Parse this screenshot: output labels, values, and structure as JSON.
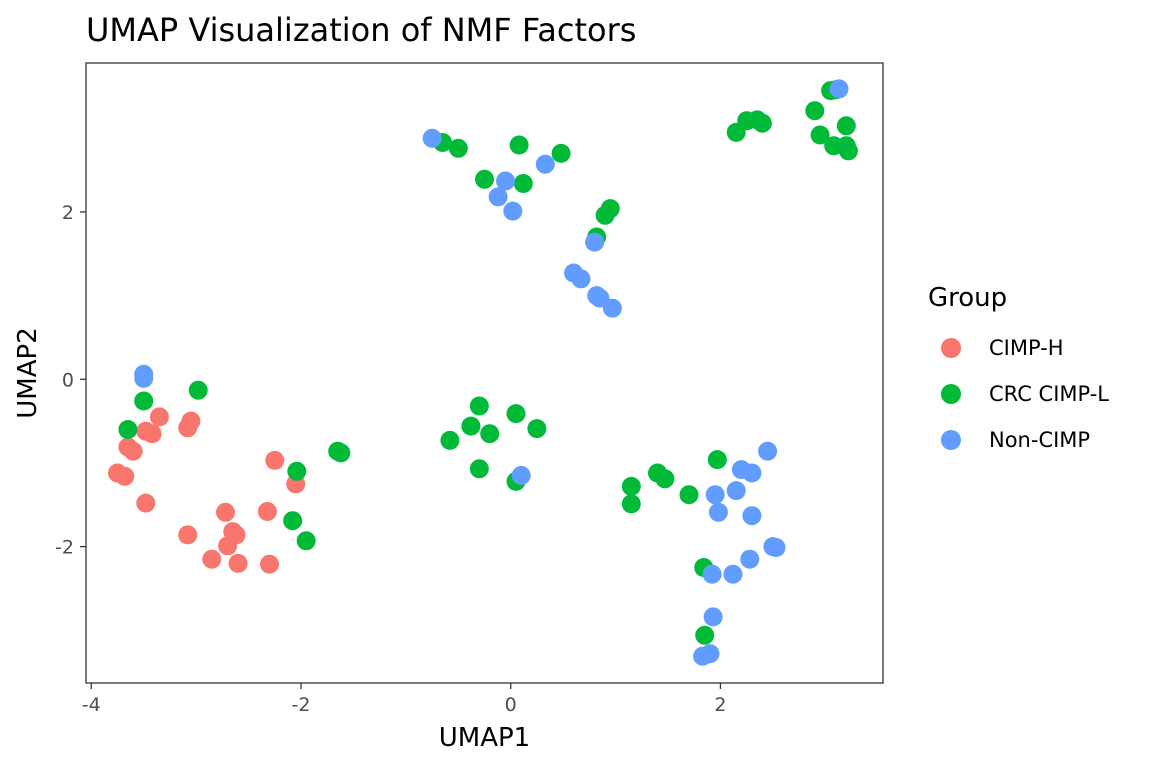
{
  "chart_data": {
    "type": "scatter",
    "title": "UMAP Visualization of NMF Factors",
    "xlabel": "UMAP1",
    "ylabel": "UMAP2",
    "xlim": [
      -4.05,
      3.55
    ],
    "ylim": [
      -3.63,
      3.78
    ],
    "x_ticks": [
      -4,
      -2,
      0,
      2
    ],
    "y_ticks": [
      -2,
      0,
      2
    ],
    "grid": false,
    "legend_position": "right",
    "legend_title": "Group",
    "series": [
      {
        "name": "CIMP-H",
        "color": "#F8766D",
        "points": [
          [
            -3.75,
            -1.12
          ],
          [
            -3.68,
            -1.16
          ],
          [
            -3.65,
            -0.81
          ],
          [
            -3.6,
            -0.86
          ],
          [
            -3.48,
            -0.62
          ],
          [
            -3.42,
            -0.65
          ],
          [
            -3.35,
            -0.45
          ],
          [
            -3.48,
            -1.48
          ],
          [
            -3.08,
            -0.58
          ],
          [
            -3.05,
            -0.5
          ],
          [
            -3.08,
            -1.86
          ],
          [
            -2.85,
            -2.15
          ],
          [
            -2.72,
            -1.59
          ],
          [
            -2.7,
            -1.99
          ],
          [
            -2.65,
            -1.82
          ],
          [
            -2.62,
            -1.86
          ],
          [
            -2.6,
            -2.2
          ],
          [
            -2.32,
            -1.58
          ],
          [
            -2.3,
            -2.21
          ],
          [
            -2.25,
            -0.97
          ],
          [
            -2.05,
            -1.25
          ]
        ]
      },
      {
        "name": "CRC CIMP-L",
        "color": "#00BA38",
        "points": [
          [
            -3.65,
            -0.6
          ],
          [
            -3.5,
            -0.26
          ],
          [
            -2.98,
            -0.13
          ],
          [
            -2.04,
            -1.1
          ],
          [
            -2.08,
            -1.69
          ],
          [
            -1.95,
            -1.93
          ],
          [
            -1.65,
            -0.86
          ],
          [
            -1.62,
            -0.88
          ],
          [
            -0.65,
            2.83
          ],
          [
            -0.5,
            2.76
          ],
          [
            -0.25,
            2.39
          ],
          [
            0.08,
            2.8
          ],
          [
            0.12,
            2.34
          ],
          [
            0.48,
            2.7
          ],
          [
            0.82,
            1.7
          ],
          [
            0.9,
            1.96
          ],
          [
            0.95,
            2.04
          ],
          [
            -0.58,
            -0.73
          ],
          [
            -0.3,
            -0.32
          ],
          [
            -0.38,
            -0.56
          ],
          [
            -0.2,
            -0.65
          ],
          [
            0.05,
            -0.41
          ],
          [
            0.25,
            -0.59
          ],
          [
            -0.3,
            -1.07
          ],
          [
            0.05,
            -1.22
          ],
          [
            1.15,
            -1.28
          ],
          [
            1.15,
            -1.49
          ],
          [
            1.4,
            -1.12
          ],
          [
            1.47,
            -1.19
          ],
          [
            1.7,
            -1.38
          ],
          [
            1.97,
            -0.96
          ],
          [
            1.84,
            -2.25
          ],
          [
            1.85,
            -3.06
          ],
          [
            2.15,
            2.95
          ],
          [
            2.25,
            3.09
          ],
          [
            2.35,
            3.1
          ],
          [
            2.4,
            3.06
          ],
          [
            2.9,
            3.21
          ],
          [
            2.95,
            2.92
          ],
          [
            3.05,
            3.45
          ],
          [
            3.1,
            3.46
          ],
          [
            3.08,
            2.79
          ],
          [
            3.2,
            3.03
          ],
          [
            3.2,
            2.79
          ],
          [
            3.22,
            2.73
          ]
        ]
      },
      {
        "name": "Non-CIMP",
        "color": "#619CFF",
        "points": [
          [
            -3.5,
            0.06
          ],
          [
            -3.5,
            0.01
          ],
          [
            -0.75,
            2.88
          ],
          [
            -0.12,
            2.18
          ],
          [
            -0.05,
            2.37
          ],
          [
            0.02,
            2.01
          ],
          [
            0.33,
            2.57
          ],
          [
            0.6,
            1.27
          ],
          [
            0.67,
            1.2
          ],
          [
            0.8,
            1.64
          ],
          [
            0.82,
            1.0
          ],
          [
            0.85,
            0.97
          ],
          [
            0.97,
            0.85
          ],
          [
            0.1,
            -1.15
          ],
          [
            2.45,
            -0.86
          ],
          [
            2.2,
            -1.08
          ],
          [
            2.3,
            -1.12
          ],
          [
            2.15,
            -1.33
          ],
          [
            1.95,
            -1.38
          ],
          [
            1.98,
            -1.59
          ],
          [
            2.3,
            -1.63
          ],
          [
            2.5,
            -2.0
          ],
          [
            2.53,
            -2.01
          ],
          [
            2.28,
            -2.15
          ],
          [
            2.12,
            -2.33
          ],
          [
            1.92,
            -2.33
          ],
          [
            1.93,
            -2.84
          ],
          [
            1.9,
            -3.28
          ],
          [
            1.83,
            -3.31
          ],
          [
            3.13,
            3.47
          ]
        ]
      }
    ]
  }
}
